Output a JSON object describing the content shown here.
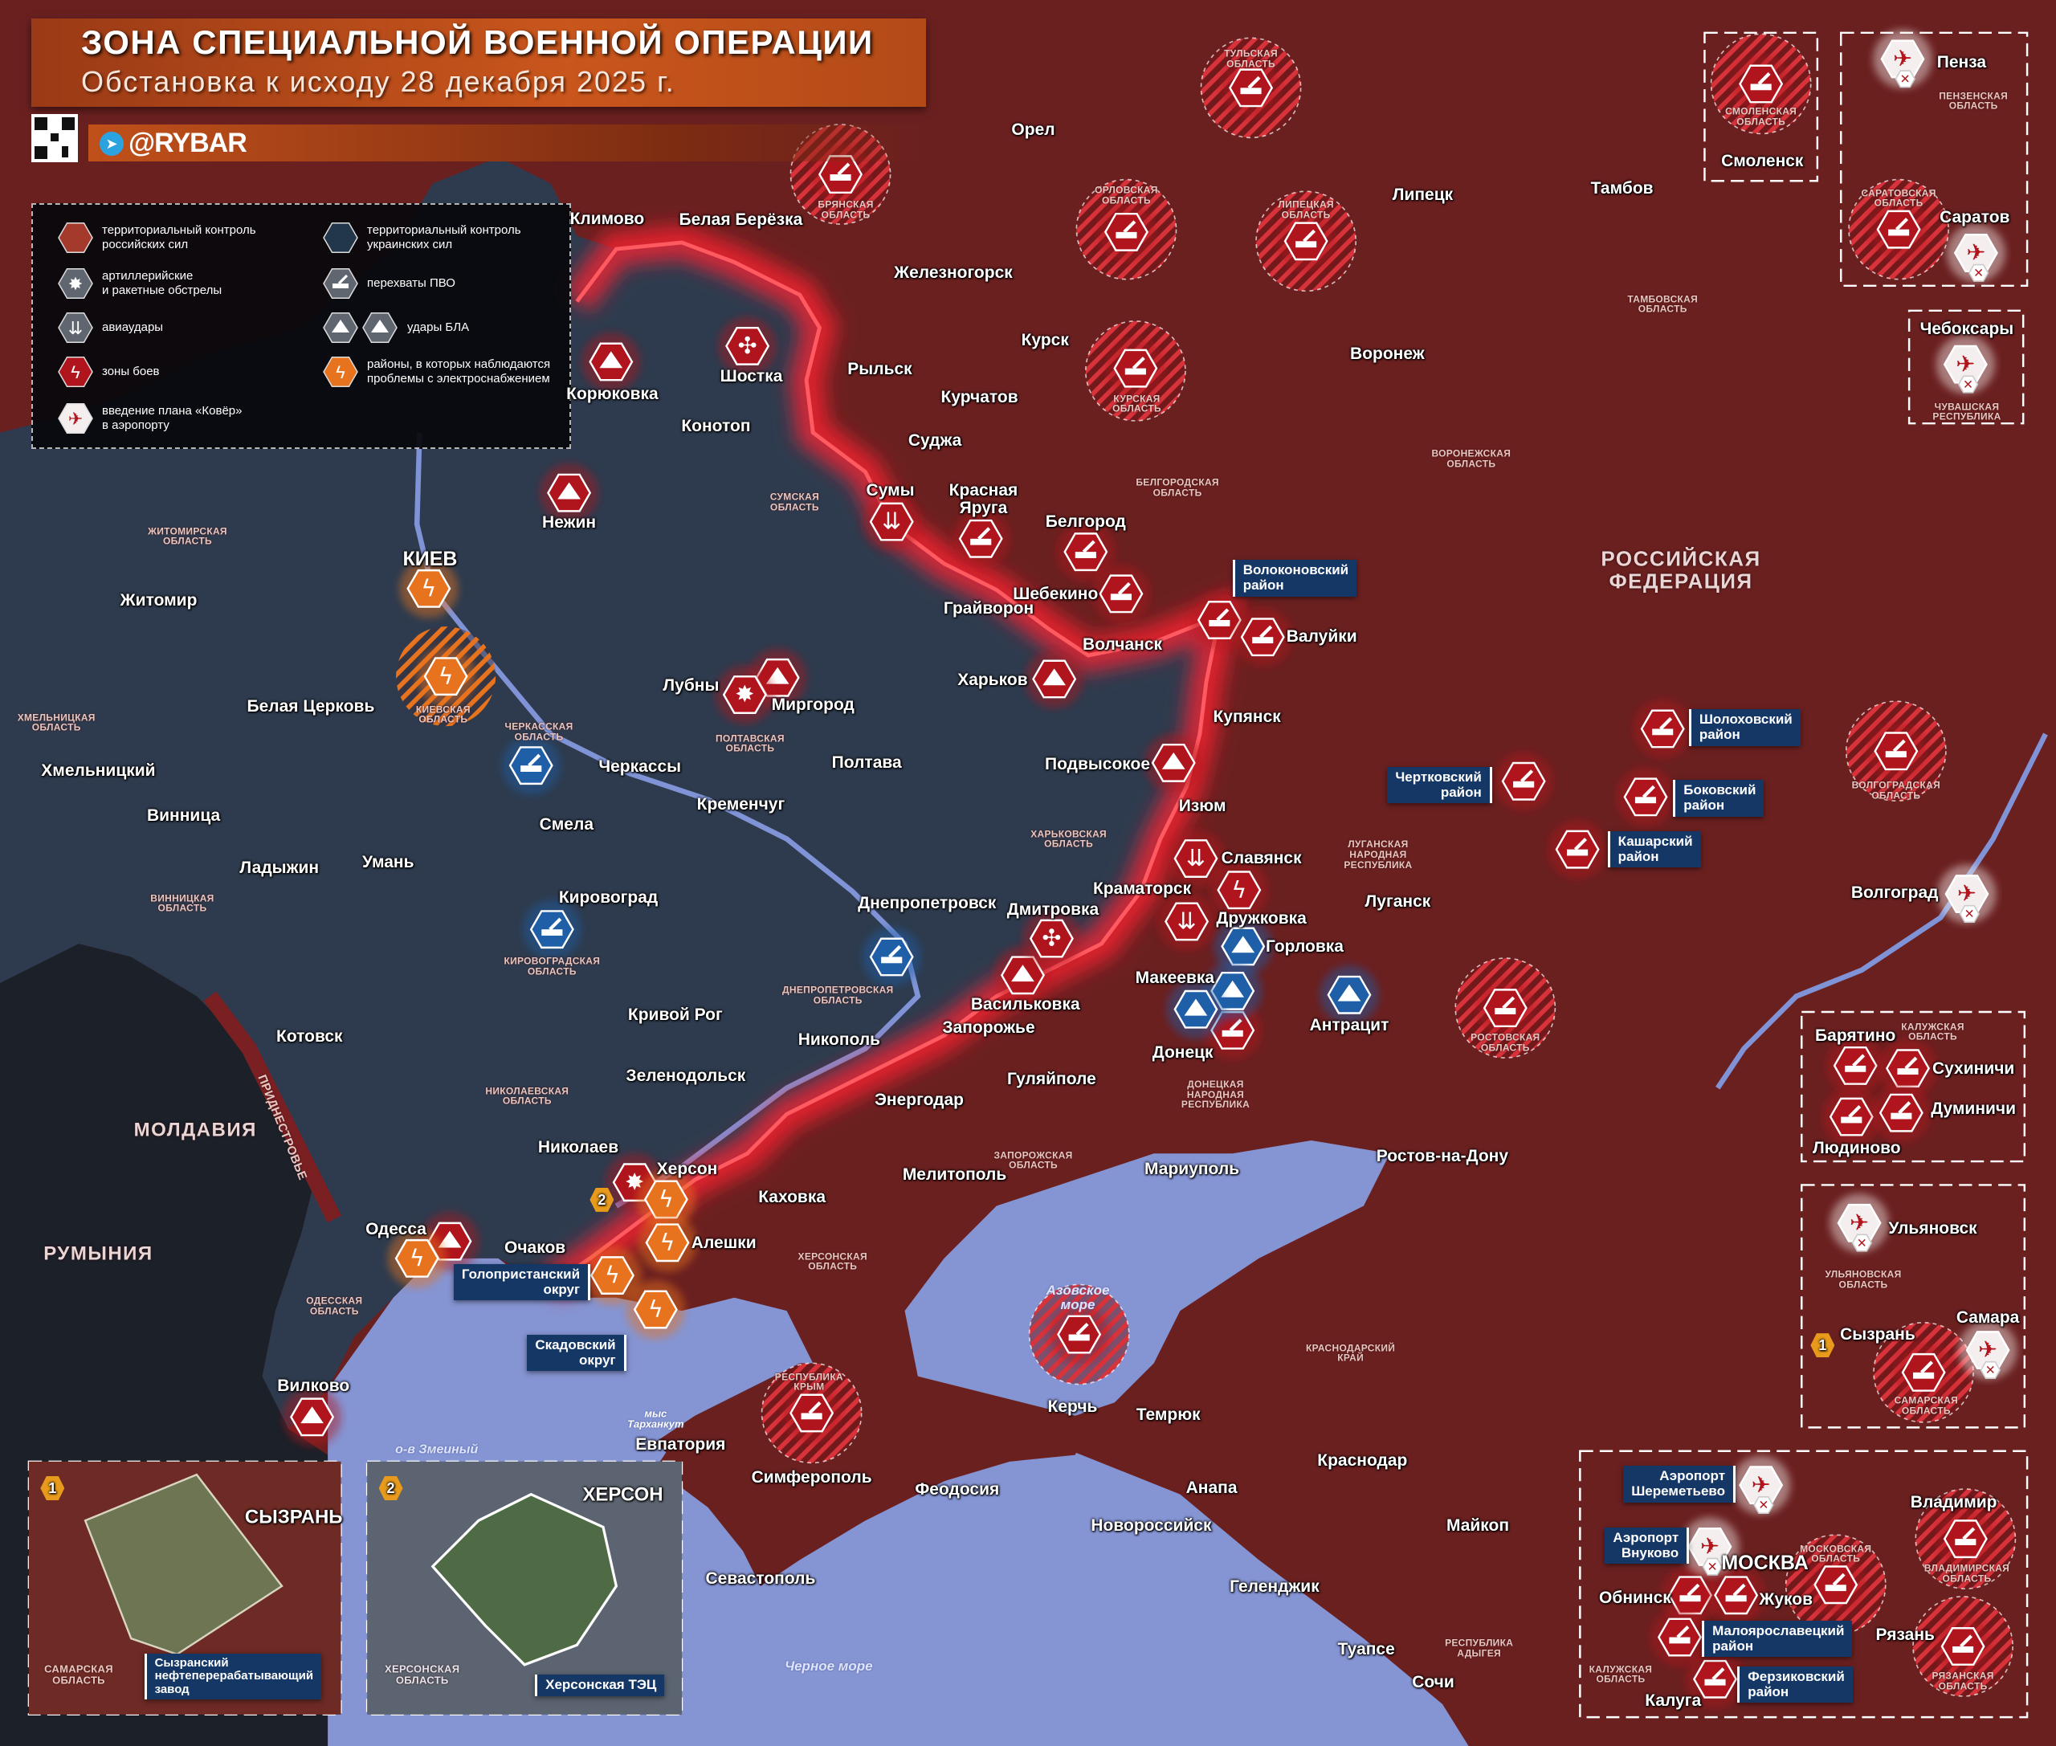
{
  "header": {
    "title": "ЗОНА СПЕЦИАЛЬНОЙ ВОЕННОЙ ОПЕРАЦИИ",
    "subtitle": "Обстановка к исходу 28 декабря 2025 г.",
    "handle": "@RYBAR",
    "qr_icon": "qr-code-icon",
    "telegram_icon": "telegram-icon"
  },
  "legend": {
    "items": [
      {
        "label": "территориальный контроль\nроссийских сил",
        "icon": "russian-control-hex"
      },
      {
        "label": "территориальный контроль\nукраинских сил",
        "icon": "ukrainian-control-hex"
      },
      {
        "label": "артиллерийские\nи ракетные обстрелы",
        "icon": "artillery"
      },
      {
        "label": "перехваты ПВО",
        "icon": "air-defense"
      },
      {
        "label": "авиаудары",
        "icon": "airstrike"
      },
      {
        "label": "удары БЛА",
        "icon": "uav"
      },
      {
        "label": "зоны боев",
        "icon": "combat-zone"
      },
      {
        "label": "районы, в которых наблюдаются\nпроблемы с электроснабжением",
        "icon": "power-outage"
      },
      {
        "label": "введение плана «Ковёр»\nв аэропорту",
        "icon": "airport-carpet"
      }
    ]
  },
  "colors": {
    "russia": "#6b2020",
    "ukraine": "#2e3b4e",
    "sea": "#8594d2",
    "moldova_romania": "#1b2029",
    "marker_red": "#b0141c",
    "marker_blue": "#1f5fa8",
    "marker_orange": "#e8731e",
    "callout": "#153766"
  },
  "countries": {
    "russia": "РОССИЙСКАЯ\nФЕДЕРАЦИЯ",
    "moldova": "МОЛДАВИЯ",
    "romania": "РУМЫНИЯ",
    "transnistria": "ПРИДНЕСТРОВЬЕ"
  },
  "seas": [
    "Азовское\nморе",
    "Черное море"
  ],
  "misc": [
    "о-в Змеиный",
    "мыс\nТарханкут"
  ],
  "cities": [
    "Климово",
    "Белая Берёзка",
    "Железногорск",
    "Орел",
    "Липецк",
    "Тамбов",
    "Рыльск",
    "Курск",
    "Курчатов",
    "Воронеж",
    "Шостка",
    "Корюковка",
    "Конотоп",
    "Суджа",
    "Сумы",
    "Красная\nЯруга",
    "Белгород",
    "Нежин",
    "Шебекино",
    "Грайворон",
    "Волчанск",
    "Валуйки",
    "КИЕВ",
    "Житомир",
    "Лубны",
    "Миргород",
    "Харьков",
    "Купянск",
    "Белая Церковь",
    "Черкассы",
    "Полтава",
    "Подвысокое",
    "Изюм",
    "Хмельницкий",
    "Смела",
    "Кременчуг",
    "Винница",
    "Славянск",
    "Краматорск",
    "Ладыжин",
    "Умань",
    "Кировоград",
    "Днепропетровск",
    "Дмитровка",
    "Дружковка",
    "Горловка",
    "Луганск",
    "Макеевка",
    "Васильковка",
    "Запорожье",
    "Донецк",
    "Антрацит",
    "Кривой Рог",
    "Котовск",
    "Никополь",
    "Гуляйполе",
    "Зеленодольск",
    "Энергодар",
    "Николаев",
    "Херсон",
    "Каховка",
    "Мелитополь",
    "Мариуполь",
    "Ростов-на-Дону",
    "Одесса",
    "Очаков",
    "Алешки",
    "Вилково",
    "Евпатория",
    "Симферополь",
    "Феодосия",
    "Керчь",
    "Темрюк",
    "Анапа",
    "Новороссийск",
    "Краснодар",
    "Майкоп",
    "Геленджик",
    "Туапсе",
    "Сочи",
    "Севастополь",
    "Волгоград",
    "Пенза",
    "Смоленск",
    "Саратов",
    "Чебоксары",
    "Барятино",
    "Сухиничи",
    "Думиничи",
    "Людиново",
    "Ульяновск",
    "Сызрань",
    "Самара",
    "Владимир",
    "МОСКВА",
    "Обнинск",
    "Жуков",
    "Рязань",
    "Калуга"
  ],
  "regions": [
    "Брянская\nобласть",
    "Орловская\nобласть",
    "Тульская\nобласть",
    "Липецкая\nобласть",
    "Курская\nобласть",
    "Белгородская\nобласть",
    "Воронежская\nобласть",
    "Тамбовская\nобласть",
    "Сумская\nобласть",
    "Житомирская\nобласть",
    "Киевская\nобласть",
    "Хмельницкая\nобласть",
    "Черкасская\nобласть",
    "Полтавская\nобласть",
    "Харьковская\nобласть",
    "Луганская\nНародная\nРеспублика",
    "Винницкая\nобласть",
    "Кировоградская\nобласть",
    "Днепропетровская\nобласть",
    "Донецкая\nНародная\nРеспублика",
    "Николаевская\nобласть",
    "Запорожская\nобласть",
    "Херсонская\nобласть",
    "Одесская\nобласть",
    "Ростовская\nобласть",
    "Краснодарский\nкрай",
    "Республика\nКрым",
    "Республика\nАдыгея",
    "Волгоградская\nобласть",
    "Саратовская\nобласть",
    "Пензенская\nобласть",
    "Смоленская\nобласть",
    "Чувашская\nРеспублика",
    "Калужская\nобласть",
    "Ульяновская\nобласть",
    "Самарская\nобласть",
    "Московская\nобласть",
    "Владимирская\nобласть",
    "Рязанская\nобласть",
    "Калужская\nобласть"
  ],
  "callouts": [
    "Волоконовский\nрайон",
    "Шолоховский\nрайон",
    "Чертковский\nрайон",
    "Боковский\nрайон",
    "Кашарский\nрайон",
    "Голопристанский\nокруг",
    "Скадовский\nокруг",
    "Аэропорт\nШереметьево",
    "Аэропорт\nВнуково",
    "Малоярославецкий\nрайон",
    "Ферзиковский\nрайон",
    "Сызранский\nнефтеперерабатывающий\nзавод",
    "Херсонская ТЭЦ"
  ],
  "insets": {
    "inset1": {
      "badge": "1",
      "title": "СЫЗРАНЬ",
      "region": "САМАРСКАЯ\nОБЛАСТЬ",
      "icon": "uav"
    },
    "inset2": {
      "badge": "2",
      "title": "ХЕРСОН",
      "region": "ХЕРСОНСКАЯ\nОБЛАСТЬ",
      "icon": "artillery"
    },
    "map_badges": [
      "2",
      "1"
    ]
  },
  "markers": [
    "air-defense",
    "air-defense",
    "air-defense",
    "air-defense",
    "air-defense",
    "air-defense",
    "air-defense",
    "air-defense",
    "air-defense",
    "air-defense",
    "air-defense",
    "air-defense",
    "air-defense",
    "air-defense",
    "air-defense",
    "air-defense",
    "air-defense",
    "air-defense",
    "air-defense",
    "air-defense",
    "air-defense",
    "air-defense",
    "air-defense",
    "air-defense",
    "air-defense",
    "air-defense",
    "air-defense",
    "air-defense",
    "air-defense",
    "air-defense",
    "air-defense",
    "air-defense",
    "air-defense",
    "air-defense-ua",
    "air-defense-ua",
    "air-defense-ua",
    "uav",
    "uav",
    "uav",
    "uav",
    "uav",
    "uav",
    "uav",
    "uav",
    "uav-ua",
    "uav-ua",
    "uav-ua",
    "uav-ua",
    "drone",
    "drone",
    "airstrike",
    "airstrike",
    "airstrike",
    "artillery",
    "artillery",
    "combat-zone",
    "power-outage",
    "power-outage",
    "power-outage",
    "power-outage",
    "power-outage",
    "power-outage",
    "power-outage",
    "airport-carpet",
    "airport-carpet",
    "airport-carpet",
    "airport-carpet",
    "airport-carpet",
    "airport-carpet",
    "airport-carpet",
    "airport-carpet"
  ]
}
